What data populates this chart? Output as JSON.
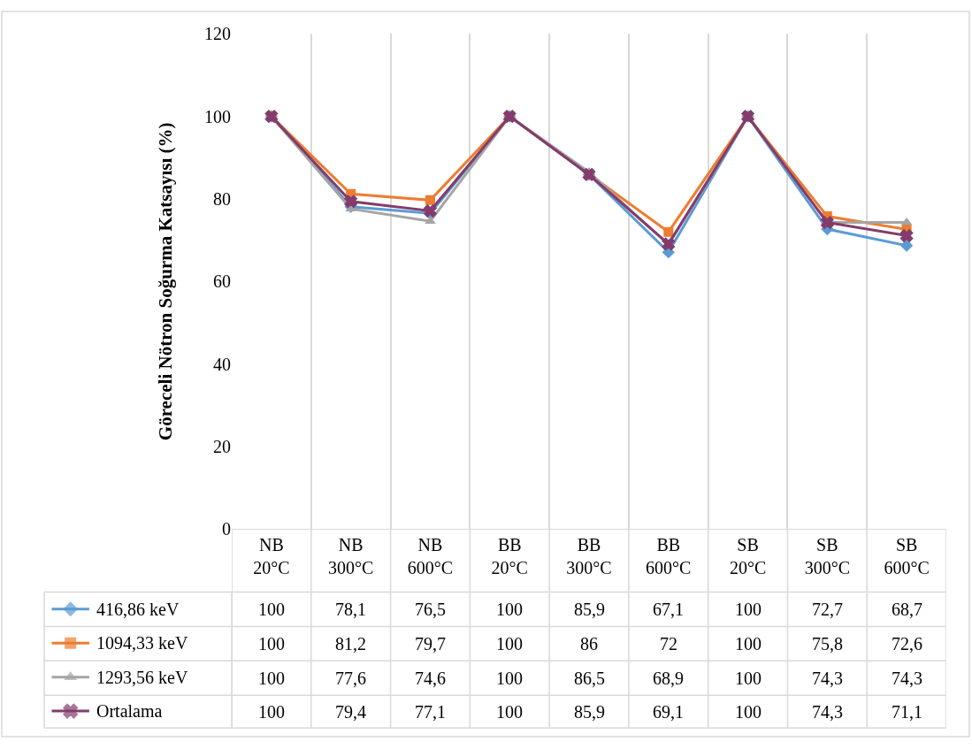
{
  "chart_data": {
    "type": "line",
    "ylabel": "Göreceli Nötron Soğurma Katsayısı (%)",
    "categories": [
      "NB 20°C",
      "NB 300°C",
      "NB 600°C",
      "BB 20°C",
      "BB 300°C",
      "BB 600°C",
      "SB 20°C",
      "SB 300°C",
      "SB 600°C"
    ],
    "series": [
      {
        "name": "416,86 keV",
        "color": "#5b9bd5",
        "marker": "diamond",
        "values": [
          100,
          78.1,
          76.5,
          100,
          85.9,
          67.1,
          100,
          72.7,
          68.7
        ],
        "value_labels": [
          "100",
          "78,1",
          "76,5",
          "100",
          "85,9",
          "67,1",
          "100",
          "72,7",
          "68,7"
        ]
      },
      {
        "name": "1094,33 keV",
        "color": "#ed7d31",
        "marker": "square",
        "values": [
          100,
          81.2,
          79.7,
          100,
          86,
          72,
          100,
          75.8,
          72.6
        ],
        "value_labels": [
          "100",
          "81,2",
          "79,7",
          "100",
          "86",
          "72",
          "100",
          "75,8",
          "72,6"
        ]
      },
      {
        "name": "1293,56 keV",
        "color": "#a5a5a5",
        "marker": "triangle",
        "values": [
          100,
          77.6,
          74.6,
          100,
          86.5,
          68.9,
          100,
          74.3,
          74.3
        ],
        "value_labels": [
          "100",
          "77,6",
          "74,6",
          "100",
          "86,5",
          "68,9",
          "100",
          "74,3",
          "74,3"
        ]
      },
      {
        "name": "Ortalama",
        "color": "#843c6c",
        "marker": "cross",
        "values": [
          100,
          79.4,
          77.1,
          100,
          85.9,
          69.1,
          100,
          74.3,
          71.1
        ],
        "value_labels": [
          "100",
          "79,4",
          "77,1",
          "100",
          "85,9",
          "69,1",
          "100",
          "74,3",
          "71,1"
        ]
      }
    ],
    "ylim": [
      0,
      120
    ],
    "yticks": [
      0,
      20,
      40,
      60,
      80,
      100,
      120
    ],
    "grid": "x",
    "legend": "bottom",
    "line_style": "solid"
  }
}
